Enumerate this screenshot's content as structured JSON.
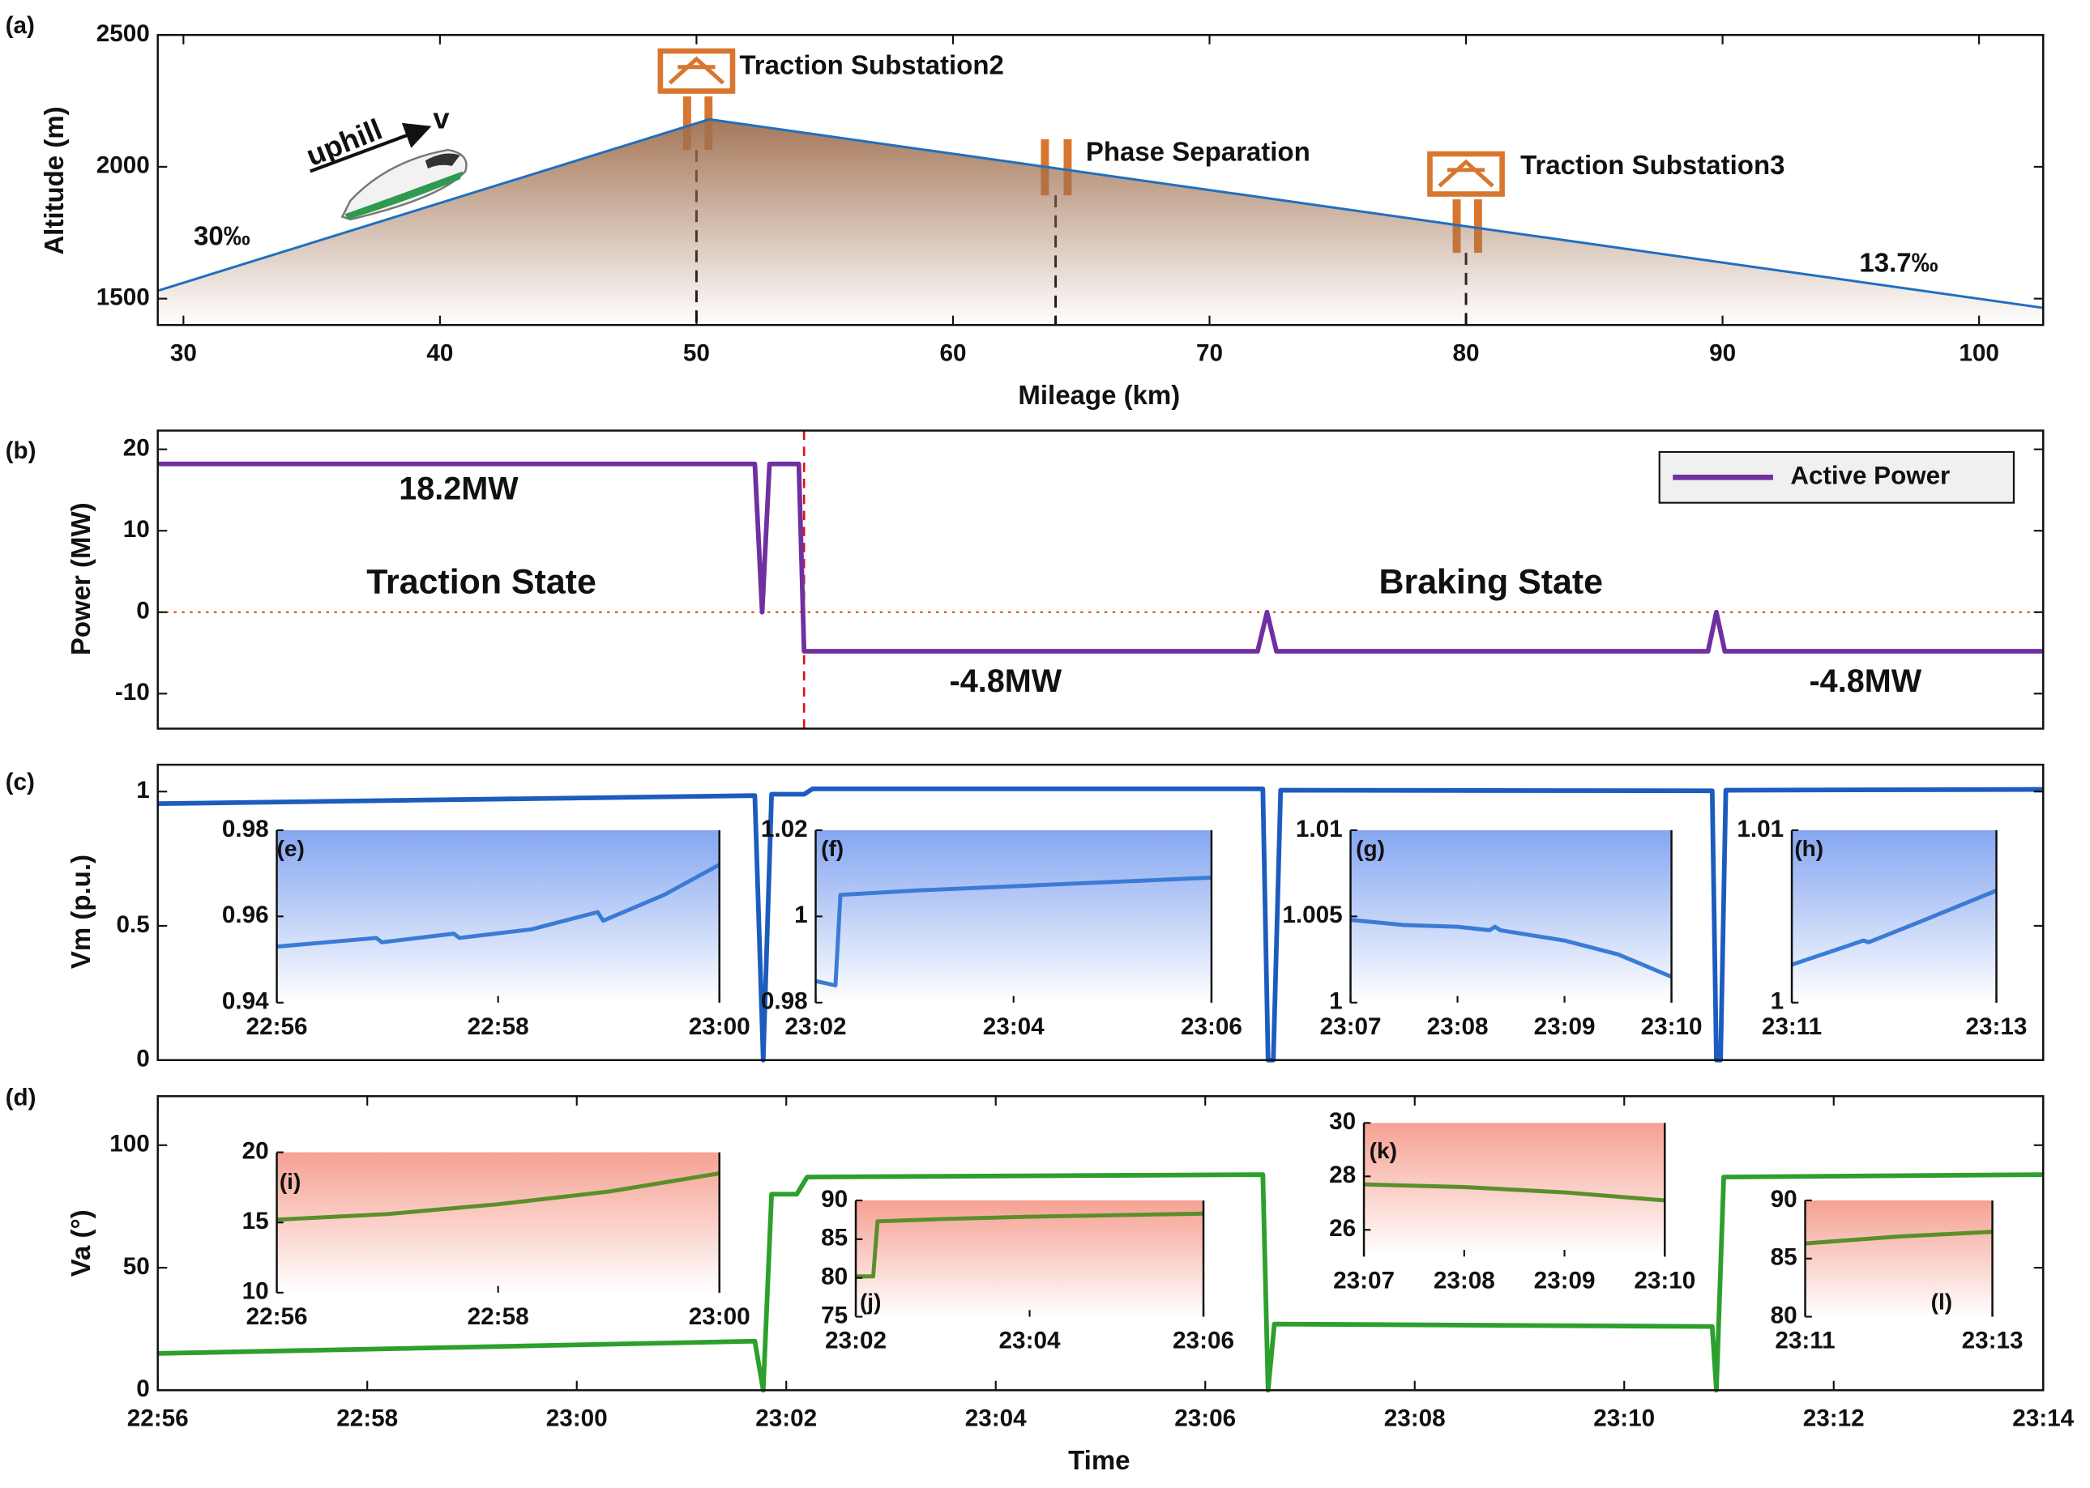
{
  "chart_data": [
    {
      "type": "area",
      "panel_label": "(a)",
      "x_label": "Mileage (km)",
      "y_label": "Altitude (m)",
      "x": [
        29,
        50.5,
        102.5
      ],
      "series": [
        {
          "color": "#1f6fc0",
          "values": [
            1530,
            2180,
            1465
          ]
        }
      ],
      "fill_color": "#a07050",
      "xlim": [
        29,
        102.5
      ],
      "ylim": [
        1400,
        2500
      ],
      "xticks": [
        30,
        40,
        50,
        60,
        70,
        80,
        90,
        100
      ],
      "yticks": [
        1500,
        2000,
        2500
      ],
      "vlines": [
        50,
        64,
        80
      ],
      "annotations": [
        "uphill",
        "v",
        "30‰",
        "Traction Substation2",
        "Phase Separation",
        "Traction Substation3",
        "13.7‰"
      ]
    },
    {
      "type": "line",
      "panel_label": "(b)",
      "y_label": "Power (MW)",
      "x": [
        0,
        5.7,
        5.77,
        5.84,
        5.9,
        6.12,
        6.17,
        10.5,
        10.59,
        10.68,
        14.8,
        14.88,
        14.96,
        18
      ],
      "series": [
        {
          "name": "Active Power",
          "color": "#7030a0",
          "values": [
            18.2,
            18.2,
            0,
            18.2,
            18.2,
            18.2,
            -4.8,
            -4.8,
            0,
            -4.8,
            -4.8,
            0,
            -4.8,
            -4.8
          ]
        }
      ],
      "xlim": [
        0,
        18
      ],
      "ylim": [
        -14.3,
        22.3
      ],
      "yticks": [
        -10,
        0,
        10,
        20
      ],
      "vlines": [
        6.17
      ],
      "hlines": [
        0
      ],
      "legend": "upper right",
      "annotations": [
        "18.2MW",
        "Traction State",
        "Braking State",
        "-4.8MW",
        "-4.8MW"
      ]
    },
    {
      "type": "line",
      "panel_label": "(c)",
      "y_label": "Vm (p.u.)",
      "x": [
        0,
        5.7,
        5.78,
        5.86,
        6.0,
        6.17,
        6.25,
        10.55,
        10.6,
        10.65,
        10.72,
        14.84,
        14.88,
        14.92,
        14.97,
        18
      ],
      "series": [
        {
          "color": "#1c5cbf",
          "values": [
            0.955,
            0.985,
            0,
            0.99,
            0.99,
            0.99,
            1.01,
            1.01,
            0,
            0,
            1.005,
            1.003,
            0,
            0,
            1.005,
            1.008
          ]
        }
      ],
      "xlim": [
        0,
        18
      ],
      "ylim": [
        0,
        1.1
      ],
      "yticks": [
        0,
        0.5,
        1
      ]
    },
    {
      "type": "line",
      "panel_label": "(d)",
      "x_label": "Time",
      "y_label": "Va (°)",
      "x": [
        0,
        5.7,
        5.78,
        5.86,
        6.1,
        6.2,
        10.55,
        10.6,
        10.66,
        14.84,
        14.88,
        14.95,
        18
      ],
      "series": [
        {
          "color": "#2ca02c",
          "values": [
            15,
            20,
            0,
            80,
            80,
            87,
            88,
            0,
            27,
            26,
            0,
            87,
            88
          ]
        }
      ],
      "xlim": [
        0,
        18
      ],
      "ylim": [
        0,
        120
      ],
      "yticks": [
        0,
        50,
        100
      ],
      "xticks": [
        {
          "value": 0,
          "label": "22:56"
        },
        {
          "value": 2,
          "label": "22:58"
        },
        {
          "value": 4,
          "label": "23:00"
        },
        {
          "value": 6,
          "label": "23:02"
        },
        {
          "value": 8,
          "label": "23:04"
        },
        {
          "value": 10,
          "label": "23:06"
        },
        {
          "value": 12,
          "label": "23:08"
        },
        {
          "value": 14,
          "label": "23:10"
        },
        {
          "value": 16,
          "label": "23:12"
        },
        {
          "value": 18,
          "label": "23:14"
        }
      ]
    },
    {
      "type": "line",
      "panel_label": "(e)",
      "fill_color": "#6f96ee",
      "x": [
        0,
        0.9,
        0.95,
        1.6,
        1.65,
        2.3,
        2.9,
        2.95,
        3.5,
        4
      ],
      "series": [
        {
          "color": "#3a7bd5",
          "values": [
            0.953,
            0.955,
            0.954,
            0.956,
            0.955,
            0.957,
            0.961,
            0.959,
            0.965,
            0.972
          ]
        }
      ],
      "xlim": [
        0,
        4
      ],
      "ylim": [
        0.94,
        0.98
      ],
      "yticks": [
        0.94,
        0.96,
        0.98
      ],
      "xticks": [
        {
          "value": 0,
          "label": "22:56"
        },
        {
          "value": 2,
          "label": "22:58"
        },
        {
          "value": 4,
          "label": "23:00"
        }
      ]
    },
    {
      "type": "line",
      "panel_label": "(f)",
      "fill_color": "#6f96ee",
      "x": [
        6,
        6.2,
        6.25,
        7,
        8,
        9,
        10
      ],
      "series": [
        {
          "color": "#3a7bd5",
          "values": [
            0.985,
            0.984,
            1.005,
            1.006,
            1.007,
            1.008,
            1.009
          ]
        }
      ],
      "xlim": [
        6,
        10
      ],
      "ylim": [
        0.98,
        1.02
      ],
      "yticks": [
        0.98,
        1,
        1.02
      ],
      "xticks": [
        {
          "value": 6,
          "label": "23:02"
        },
        {
          "value": 8,
          "label": "23:04"
        },
        {
          "value": 10,
          "label": "23:06"
        }
      ]
    },
    {
      "type": "line",
      "panel_label": "(g)",
      "fill_color": "#6f96ee",
      "x": [
        11,
        11.5,
        12,
        12.3,
        12.35,
        12.4,
        13,
        13.5,
        14
      ],
      "series": [
        {
          "color": "#3a7bd5",
          "values": [
            1.0048,
            1.0045,
            1.0044,
            1.0042,
            1.0044,
            1.0042,
            1.0036,
            1.0028,
            1.0015
          ]
        }
      ],
      "xlim": [
        11,
        14
      ],
      "ylim": [
        1,
        1.01
      ],
      "yticks": [
        1,
        1.005,
        1.01
      ],
      "xticks": [
        {
          "value": 11,
          "label": "23:07"
        },
        {
          "value": 12,
          "label": "23:08"
        },
        {
          "value": 13,
          "label": "23:09"
        },
        {
          "value": 14,
          "label": "23:10"
        }
      ]
    },
    {
      "type": "line",
      "panel_label": "(h)",
      "fill_color": "#6f96ee",
      "x": [
        15,
        15.7,
        15.75,
        16.3,
        17
      ],
      "series": [
        {
          "color": "#3a7bd5",
          "values": [
            1.0022,
            1.0036,
            1.0035,
            1.0048,
            1.0065
          ]
        }
      ],
      "xlim": [
        15,
        17
      ],
      "ylim": [
        1,
        1.01
      ],
      "yticks": [
        1,
        1.01
      ],
      "xticks": [
        {
          "value": 15,
          "label": "23:11"
        },
        {
          "value": 17,
          "label": "23:13"
        }
      ]
    },
    {
      "type": "line",
      "panel_label": "(i)",
      "fill_color": "#f4907f",
      "x": [
        0,
        1,
        2,
        3,
        4
      ],
      "series": [
        {
          "color": "#5a8f2a",
          "values": [
            15.2,
            15.6,
            16.3,
            17.2,
            18.5
          ]
        }
      ],
      "xlim": [
        0,
        4
      ],
      "ylim": [
        10,
        20
      ],
      "yticks": [
        10,
        15,
        20
      ],
      "xticks": [
        {
          "value": 0,
          "label": "22:56"
        },
        {
          "value": 2,
          "label": "22:58"
        },
        {
          "value": 4,
          "label": "23:00"
        }
      ]
    },
    {
      "type": "line",
      "panel_label": "(j)",
      "fill_color": "#f4907f",
      "x": [
        6,
        6.2,
        6.25,
        7,
        8,
        9,
        10
      ],
      "series": [
        {
          "color": "#5a8f2a",
          "values": [
            80.2,
            80.2,
            87.3,
            87.6,
            87.9,
            88.1,
            88.3
          ]
        }
      ],
      "xlim": [
        6,
        10
      ],
      "ylim": [
        75,
        90
      ],
      "yticks": [
        75,
        80,
        85,
        90
      ],
      "xticks": [
        {
          "value": 6,
          "label": "23:02"
        },
        {
          "value": 8,
          "label": "23:04"
        },
        {
          "value": 10,
          "label": "23:06"
        }
      ]
    },
    {
      "type": "line",
      "panel_label": "(k)",
      "fill_color": "#f4907f",
      "x": [
        11,
        12,
        13,
        14
      ],
      "series": [
        {
          "color": "#5a8f2a",
          "values": [
            27.7,
            27.6,
            27.4,
            27.1
          ]
        }
      ],
      "xlim": [
        11,
        14
      ],
      "ylim": [
        25,
        30
      ],
      "yticks": [
        26,
        28,
        30
      ],
      "xticks": [
        {
          "value": 11,
          "label": "23:07"
        },
        {
          "value": 12,
          "label": "23:08"
        },
        {
          "value": 13,
          "label": "23:09"
        },
        {
          "value": 14,
          "label": "23:10"
        }
      ]
    },
    {
      "type": "line",
      "panel_label": "(l)",
      "fill_color": "#f4907f",
      "x": [
        15,
        16,
        17
      ],
      "series": [
        {
          "color": "#5a8f2a",
          "values": [
            86.3,
            86.9,
            87.3
          ]
        }
      ],
      "xlim": [
        15,
        17
      ],
      "ylim": [
        80,
        90
      ],
      "yticks": [
        80,
        85,
        90
      ],
      "xticks": [
        {
          "value": 15,
          "label": "23:11"
        },
        {
          "value": 17,
          "label": "23:13"
        }
      ]
    }
  ]
}
